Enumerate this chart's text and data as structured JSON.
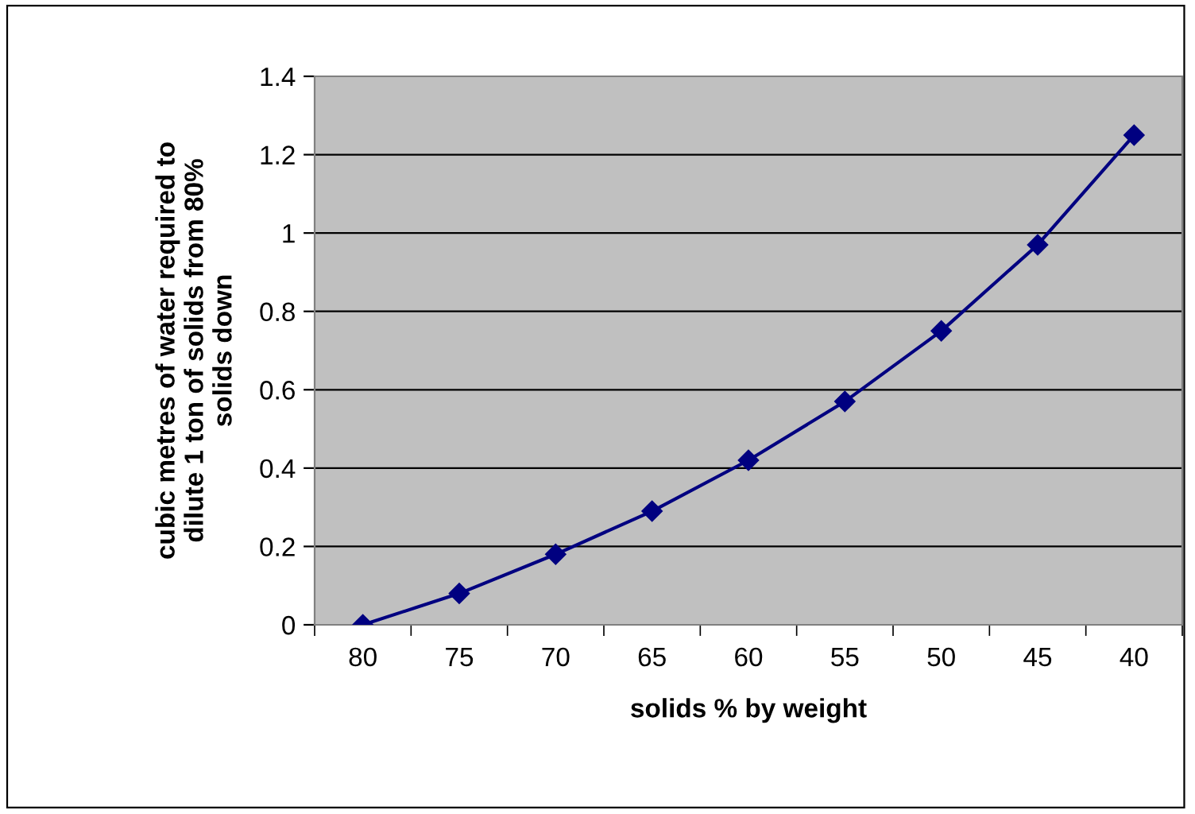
{
  "chart_data": {
    "type": "line",
    "xlabel": "solids % by weight",
    "ylabel": "cubic metres of water required to\ndilute 1 ton of solids from 80%\nsolids down",
    "categories": [
      "80",
      "75",
      "70",
      "65",
      "60",
      "55",
      "50",
      "45",
      "40"
    ],
    "series": [
      {
        "color": "#000080",
        "values": [
          0,
          0.08,
          0.18,
          0.29,
          0.42,
          0.57,
          0.75,
          0.97,
          1.25
        ]
      }
    ],
    "ylim": [
      0,
      1.4
    ],
    "yticks": [
      0,
      0.2,
      0.4,
      0.6,
      0.8,
      1,
      1.2,
      1.4
    ],
    "grid": "y",
    "marker": "diamond",
    "line_style": "solid",
    "legend": false
  }
}
